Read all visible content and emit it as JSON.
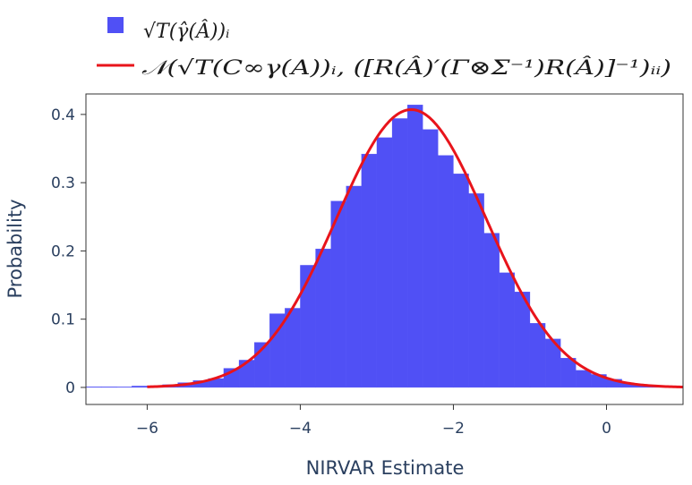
{
  "chart_data": {
    "type": "bar",
    "xlabel": "NIRVAR Estimate",
    "ylabel": "Probability",
    "xlim": [
      -6.8,
      1.0
    ],
    "ylim": [
      -0.025,
      0.43
    ],
    "x_ticks": [
      {
        "value": -6,
        "label": "−6"
      },
      {
        "value": -4,
        "label": "−4"
      },
      {
        "value": -2,
        "label": "−2"
      },
      {
        "value": 0,
        "label": "0"
      }
    ],
    "y_ticks": [
      {
        "value": 0,
        "label": "0"
      },
      {
        "value": 0.1,
        "label": "0.1"
      },
      {
        "value": 0.2,
        "label": "0.2"
      },
      {
        "value": 0.3,
        "label": "0.3"
      },
      {
        "value": 0.4,
        "label": "0.4"
      }
    ],
    "grid": false,
    "legend_position": "top-left, above plot",
    "series": [
      {
        "name": "√T(γ̂(Â))ᵢ",
        "kind": "histogram",
        "color": "#5050f5",
        "bin_width": 0.2,
        "bins": [
          {
            "x0": -6.8,
            "y": 0.001
          },
          {
            "x0": -6.6,
            "y": 0.001
          },
          {
            "x0": -6.4,
            "y": 0.0
          },
          {
            "x0": -6.2,
            "y": 0.002
          },
          {
            "x0": -6.0,
            "y": 0.002
          },
          {
            "x0": -5.8,
            "y": 0.004
          },
          {
            "x0": -5.6,
            "y": 0.007
          },
          {
            "x0": -5.4,
            "y": 0.01
          },
          {
            "x0": -5.2,
            "y": 0.013
          },
          {
            "x0": -5.0,
            "y": 0.028
          },
          {
            "x0": -4.8,
            "y": 0.04
          },
          {
            "x0": -4.6,
            "y": 0.066
          },
          {
            "x0": -4.4,
            "y": 0.108
          },
          {
            "x0": -4.2,
            "y": 0.116
          },
          {
            "x0": -4.0,
            "y": 0.179
          },
          {
            "x0": -3.8,
            "y": 0.203
          },
          {
            "x0": -3.6,
            "y": 0.273
          },
          {
            "x0": -3.4,
            "y": 0.295
          },
          {
            "x0": -3.2,
            "y": 0.342
          },
          {
            "x0": -3.0,
            "y": 0.366
          },
          {
            "x0": -2.8,
            "y": 0.394
          },
          {
            "x0": -2.6,
            "y": 0.414
          },
          {
            "x0": -2.4,
            "y": 0.378
          },
          {
            "x0": -2.2,
            "y": 0.34
          },
          {
            "x0": -2.0,
            "y": 0.313
          },
          {
            "x0": -1.8,
            "y": 0.284
          },
          {
            "x0": -1.6,
            "y": 0.226
          },
          {
            "x0": -1.4,
            "y": 0.168
          },
          {
            "x0": -1.2,
            "y": 0.14
          },
          {
            "x0": -1.0,
            "y": 0.094
          },
          {
            "x0": -0.8,
            "y": 0.071
          },
          {
            "x0": -0.6,
            "y": 0.043
          },
          {
            "x0": -0.4,
            "y": 0.025
          },
          {
            "x0": -0.2,
            "y": 0.019
          },
          {
            "x0": 0.0,
            "y": 0.012
          },
          {
            "x0": 0.2,
            "y": 0.006
          },
          {
            "x0": 0.4,
            "y": 0.003
          },
          {
            "x0": 0.6,
            "y": 0.002
          },
          {
            "x0": 0.8,
            "y": 0.001
          }
        ]
      },
      {
        "name": "𝒩(√T(C∞γ(A))ᵢ, ([R(Â)′(Γ⊗Σ⁻¹)R(Â)]⁻¹)ᵢᵢ)",
        "kind": "line",
        "color": "#e8141b",
        "curve": "normal_pdf",
        "mean": -2.55,
        "std_dev": 0.98,
        "x_range": [
          -6.0,
          1.0
        ]
      }
    ]
  }
}
